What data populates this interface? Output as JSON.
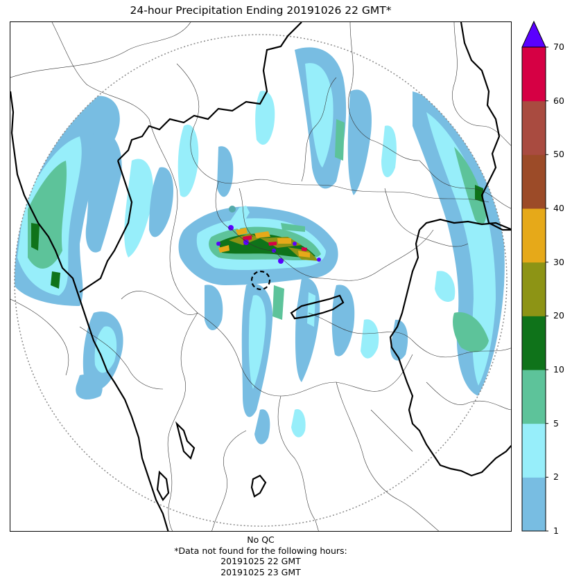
{
  "title": "24-hour Precipitation Ending 20191026 22 GMT*",
  "colorbar": {
    "ticks": [
      "1",
      "2",
      "5",
      "10",
      "20",
      "30",
      "40",
      "50",
      "60",
      "70"
    ],
    "bins": [
      {
        "range": "1-2",
        "color": "#78bde2"
      },
      {
        "range": "2-5",
        "color": "#97eefa"
      },
      {
        "range": "5-10",
        "color": "#5dc39a"
      },
      {
        "range": "10-20",
        "color": "#0f731a"
      },
      {
        "range": "20-30",
        "color": "#8d9415"
      },
      {
        "range": "30-40",
        "color": "#e6a919"
      },
      {
        "range": "40-50",
        "color": "#9c4b28"
      },
      {
        "range": "50-60",
        "color": "#a94b40"
      },
      {
        "range": "60-70",
        "color": "#d60044"
      }
    ],
    "extend_color": "#5a00ff"
  },
  "footer": {
    "qc": "No QC",
    "note": "*Data not found for the following hours:",
    "hours": [
      "20191025 22 GMT",
      "20191025 23 GMT"
    ]
  }
}
